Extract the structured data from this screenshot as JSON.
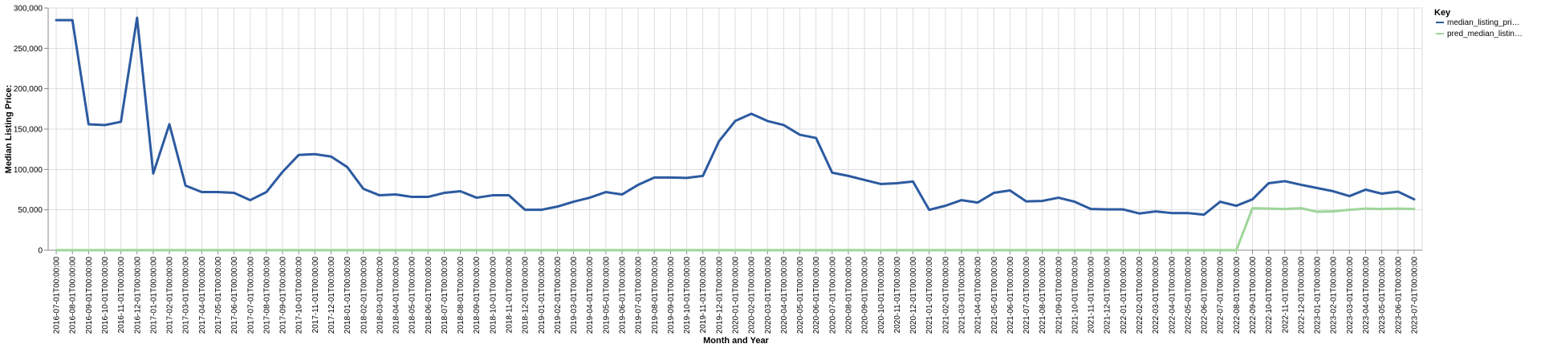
{
  "chart_data": {
    "type": "line",
    "xlabel": "Month and Year",
    "ylabel": "Median Listing Price:",
    "ylim": [
      0,
      300000
    ],
    "yticks": [
      0,
      50000,
      100000,
      150000,
      200000,
      250000,
      300000
    ],
    "ytick_labels": [
      "0",
      "50,000",
      "100,000",
      "150,000",
      "200,000",
      "250,000",
      "300,000"
    ],
    "grid": true,
    "legend": {
      "title": "Key",
      "placement": "top-right",
      "entries": [
        "median_listing_pri…",
        "pred_median_listin…"
      ]
    },
    "x": [
      "2016-07-01T00:00:00",
      "2016-08-01T00:00:00",
      "2016-09-01T00:00:00",
      "2016-10-01T00:00:00",
      "2016-11-01T00:00:00",
      "2016-12-01T00:00:00",
      "2017-01-01T00:00:00",
      "2017-02-01T00:00:00",
      "2017-03-01T00:00:00",
      "2017-04-01T00:00:00",
      "2017-05-01T00:00:00",
      "2017-06-01T00:00:00",
      "2017-07-01T00:00:00",
      "2017-08-01T00:00:00",
      "2017-09-01T00:00:00",
      "2017-10-01T00:00:00",
      "2017-11-01T00:00:00",
      "2017-12-01T00:00:00",
      "2018-01-01T00:00:00",
      "2018-02-01T00:00:00",
      "2018-03-01T00:00:00",
      "2018-04-01T00:00:00",
      "2018-05-01T00:00:00",
      "2018-06-01T00:00:00",
      "2018-07-01T00:00:00",
      "2018-08-01T00:00:00",
      "2018-09-01T00:00:00",
      "2018-10-01T00:00:00",
      "2018-11-01T00:00:00",
      "2018-12-01T00:00:00",
      "2019-01-01T00:00:00",
      "2019-02-01T00:00:00",
      "2019-03-01T00:00:00",
      "2019-04-01T00:00:00",
      "2019-05-01T00:00:00",
      "2019-06-01T00:00:00",
      "2019-07-01T00:00:00",
      "2019-08-01T00:00:00",
      "2019-09-01T00:00:00",
      "2019-10-01T00:00:00",
      "2019-11-01T00:00:00",
      "2019-12-01T00:00:00",
      "2020-01-01T00:00:00",
      "2020-02-01T00:00:00",
      "2020-03-01T00:00:00",
      "2020-04-01T00:00:00",
      "2020-05-01T00:00:00",
      "2020-06-01T00:00:00",
      "2020-07-01T00:00:00",
      "2020-08-01T00:00:00",
      "2020-09-01T00:00:00",
      "2020-10-01T00:00:00",
      "2020-11-01T00:00:00",
      "2020-12-01T00:00:00",
      "2021-01-01T00:00:00",
      "2021-02-01T00:00:00",
      "2021-03-01T00:00:00",
      "2021-04-01T00:00:00",
      "2021-05-01T00:00:00",
      "2021-06-01T00:00:00",
      "2021-07-01T00:00:00",
      "2021-08-01T00:00:00",
      "2021-09-01T00:00:00",
      "2021-10-01T00:00:00",
      "2021-11-01T00:00:00",
      "2021-12-01T00:00:00",
      "2022-01-01T00:00:00",
      "2022-02-01T00:00:00",
      "2022-03-01T00:00:00",
      "2022-04-01T00:00:00",
      "2022-05-01T00:00:00",
      "2022-06-01T00:00:00",
      "2022-07-01T00:00:00",
      "2022-08-01T00:00:00",
      "2022-09-01T00:00:00",
      "2022-10-01T00:00:00",
      "2022-11-01T00:00:00",
      "2022-12-01T00:00:00",
      "2023-01-01T00:00:00",
      "2023-02-01T00:00:00",
      "2023-03-01T00:00:00",
      "2023-04-01T00:00:00",
      "2023-05-01T00:00:00",
      "2023-06-01T00:00:00",
      "2023-07-01T00:00:00"
    ],
    "series": [
      {
        "name": "median_listing_pri…",
        "color": "#2c5aa0",
        "values": [
          285000,
          285000,
          156000,
          155000,
          159000,
          288000,
          95000,
          156000,
          80000,
          72000,
          72000,
          71000,
          62000,
          72000,
          97000,
          118000,
          119000,
          116000,
          103000,
          76000,
          68000,
          69000,
          66000,
          66000,
          71000,
          73000,
          65000,
          68000,
          68000,
          50000,
          50000,
          54000,
          60000,
          65000,
          72000,
          69000,
          81000,
          90000,
          90000,
          89500,
          92000,
          135000,
          160000,
          169000,
          160000,
          155000,
          143000,
          139000,
          96000,
          92000,
          87000,
          82000,
          83000,
          85000,
          50000,
          55000,
          62000,
          59000,
          71000,
          74000,
          60500,
          61000,
          65000,
          60000,
          51000,
          50500,
          50500,
          45500,
          48000,
          46000,
          46000,
          44000,
          60000,
          55000,
          63000,
          83000,
          85500,
          81000,
          77000,
          73000,
          67000,
          75000,
          70000,
          72500,
          63000
        ]
      },
      {
        "name": "pred_median_listin…",
        "color": "#9fd69a",
        "values": [
          0,
          0,
          0,
          0,
          0,
          0,
          0,
          0,
          0,
          0,
          0,
          0,
          0,
          0,
          0,
          0,
          0,
          0,
          0,
          0,
          0,
          0,
          0,
          0,
          0,
          0,
          0,
          0,
          0,
          0,
          0,
          0,
          0,
          0,
          0,
          0,
          0,
          0,
          0,
          0,
          0,
          0,
          0,
          0,
          0,
          0,
          0,
          0,
          0,
          0,
          0,
          0,
          0,
          0,
          0,
          0,
          0,
          0,
          0,
          0,
          0,
          0,
          0,
          0,
          0,
          0,
          0,
          0,
          0,
          0,
          0,
          0,
          0,
          0,
          52000,
          51500,
          51000,
          52000,
          47500,
          48000,
          50000,
          51500,
          51000,
          51500,
          51000
        ]
      }
    ]
  }
}
